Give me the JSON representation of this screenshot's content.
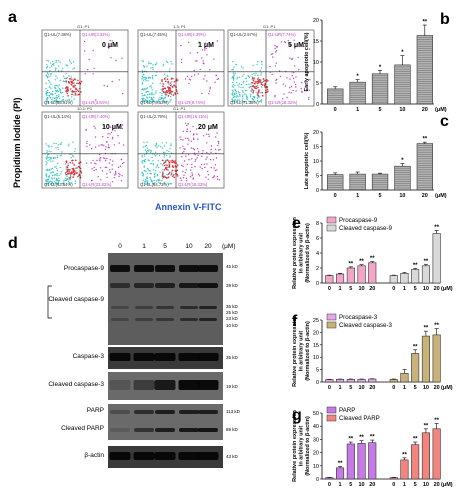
{
  "panels": {
    "a": {
      "letter": "a",
      "ylabel": "Propidium Iodide (PI)",
      "xlabel": "Annexin V-FITC",
      "plots": [
        {
          "dose": "0 μM",
          "gate": "G1: P1",
          "ul": "Q1-UL(7.38%)",
          "ur": "Q1-UR(3.32%)",
          "ll": "Q1-LL(85.91%)",
          "lr": "Q1-LR(3.64%)"
        },
        {
          "dose": "1 μM",
          "gate": "1-3: P1",
          "ul": "Q1-UL(7.45%)",
          "ur": "Q1-UR(4.39%)",
          "ll": "Q1-LL(78.53%)",
          "lr": "Q1-LR(9.74%)"
        },
        {
          "dose": "5 μM",
          "gate": "G1: P1",
          "ul": "Q1-UL(2.57%)",
          "ur": "Q1-UR(7.74%)",
          "ll": "Q1-LL(71.38%)",
          "lr": "Q1-LR(18.32%)"
        },
        {
          "dose": "10 μM",
          "gate": "10-1: P1",
          "ul": "Q1-UL(5.14%)",
          "ur": "Q1-UR(7.40%)",
          "ll": "Q1-LL(63.64%)",
          "lr": "Q1-LR(23.82%)"
        },
        {
          "dose": "20 μM",
          "gate": "G1: P1",
          "ul": "Q1-UL(2.79%)",
          "ur": "Q1-UR(16.15%)",
          "ll": "Q1-LL(64.73%)",
          "lr": "Q1-LR(16.33%)"
        }
      ]
    },
    "d": {
      "letter": "d",
      "lanes": [
        "0",
        "1",
        "5",
        "10",
        "20"
      ],
      "unit": "(μM)",
      "rows": [
        {
          "label": "Procaspase-9",
          "mw": "45 kD"
        },
        {
          "label": "Cleaved caspase-9",
          "mw": "39 kD"
        },
        {
          "label": "",
          "mw": "35 kD"
        },
        {
          "label": "",
          "mw": "25 kD"
        },
        {
          "label": "",
          "mw": "23 kD"
        },
        {
          "label": "",
          "mw": "10 kD"
        },
        {
          "label": "Caspase-3",
          "mw": "35 kD"
        },
        {
          "label": "Cleaved caspase-3",
          "mw": "19 kD"
        },
        {
          "label": "PARP",
          "mw": "113 kD"
        },
        {
          "label": "Cleaved PARP",
          "mw": "89 kD"
        },
        {
          "label": "β-actin",
          "mw": "43 kD"
        }
      ]
    }
  },
  "chart_data": [
    {
      "type": "bar",
      "letter": "b",
      "categories": [
        "0",
        "1",
        "5",
        "10",
        "20"
      ],
      "unit": "(μM)",
      "values": [
        3.6,
        5.2,
        7.2,
        9.3,
        16.3
      ],
      "errors": [
        0.5,
        0.6,
        0.8,
        2.2,
        2.5
      ],
      "sig": [
        "",
        "*",
        "*",
        "*",
        "**"
      ],
      "ylabel": "Early apoptotic cell(%)",
      "ylim": [
        0,
        20
      ],
      "yticks": [
        "0",
        "5",
        "10",
        "15",
        "20"
      ]
    },
    {
      "type": "bar",
      "letter": "c",
      "categories": [
        "0",
        "1",
        "5",
        "10",
        "20"
      ],
      "unit": "(μM)",
      "values": [
        5.3,
        5.5,
        5.5,
        8.2,
        16.0
      ],
      "errors": [
        0.6,
        0.7,
        0.3,
        0.9,
        0.5
      ],
      "sig": [
        "",
        "",
        "",
        "*",
        "**"
      ],
      "ylabel": "Late apoptotic cell(%)",
      "ylim": [
        0,
        20
      ],
      "yticks": [
        "0",
        "5",
        "10",
        "15",
        "20"
      ]
    },
    {
      "type": "bar",
      "letter": "e",
      "categories": [
        "0",
        "1",
        "5",
        "10",
        "20"
      ],
      "unit": "(μM)",
      "ylabel": "Relative protein expression\nIn arbitrary unit\n(Normalized to β-actin)",
      "ylim": [
        0,
        8
      ],
      "yticks": [
        "0",
        "2",
        "4",
        "6",
        "8"
      ],
      "series": [
        {
          "name": "Procaspase-9",
          "color": "#f4a6c8",
          "values": [
            1.0,
            1.2,
            2.0,
            2.3,
            2.7
          ],
          "errors": [
            0.05,
            0.1,
            0.15,
            0.15,
            0.15
          ],
          "sig": [
            "",
            "",
            "**",
            "**",
            "**"
          ]
        },
        {
          "name": "Cleaved caspase-9",
          "color": "#d9d9d9",
          "values": [
            1.0,
            1.3,
            1.8,
            2.3,
            6.6
          ],
          "errors": [
            0.05,
            0.1,
            0.15,
            0.2,
            0.4
          ],
          "sig": [
            "",
            "",
            "**",
            "**",
            "**"
          ]
        }
      ]
    },
    {
      "type": "bar",
      "letter": "f",
      "categories": [
        "0",
        "1",
        "5",
        "10",
        "20"
      ],
      "unit": "(μM)",
      "ylabel": "Relative protein expression\nIn arbitrary unit\n(Normalized to β-actin)",
      "ylim": [
        0,
        25
      ],
      "yticks": [
        "0",
        "5",
        "10",
        "15",
        "20",
        "25"
      ],
      "series": [
        {
          "name": "Procaspase-3",
          "color": "#e8a6e8",
          "values": [
            1.0,
            1.1,
            1.1,
            1.1,
            1.2
          ],
          "errors": [
            0.1,
            0.1,
            0.1,
            0.1,
            0.1
          ],
          "sig": [
            "",
            "",
            "",
            "",
            ""
          ]
        },
        {
          "name": "Cleaved caspase-3",
          "color": "#c8b27a",
          "values": [
            1.0,
            3.5,
            11.5,
            18.5,
            19.0
          ],
          "errors": [
            0.2,
            1.5,
            1.5,
            2.0,
            2.5
          ],
          "sig": [
            "",
            "",
            "**",
            "**",
            "**"
          ]
        }
      ]
    },
    {
      "type": "bar",
      "letter": "g",
      "categories": [
        "0",
        "1",
        "5",
        "10",
        "20"
      ],
      "unit": "(μM)",
      "ylabel": "Relative protein expression\nIn arbitrary unit\n(Normalized to β-actin)",
      "ylim": [
        0,
        50
      ],
      "yticks": [
        "0",
        "10",
        "20",
        "30",
        "40",
        "50"
      ],
      "series": [
        {
          "name": "PARP",
          "color": "#c67ae6",
          "values": [
            1.0,
            8.5,
            26.5,
            27.0,
            27.5
          ],
          "errors": [
            0.2,
            1.0,
            1.5,
            2.0,
            2.0
          ],
          "sig": [
            "",
            "**",
            "**",
            "**",
            "**"
          ]
        },
        {
          "name": "Cleaved PARP",
          "color": "#f2857d",
          "values": [
            1.0,
            14.5,
            26.0,
            35.0,
            38.0
          ],
          "errors": [
            0.2,
            1.5,
            2.0,
            3.0,
            4.0
          ],
          "sig": [
            "",
            "**",
            "**",
            "**",
            "**"
          ]
        }
      ]
    }
  ]
}
